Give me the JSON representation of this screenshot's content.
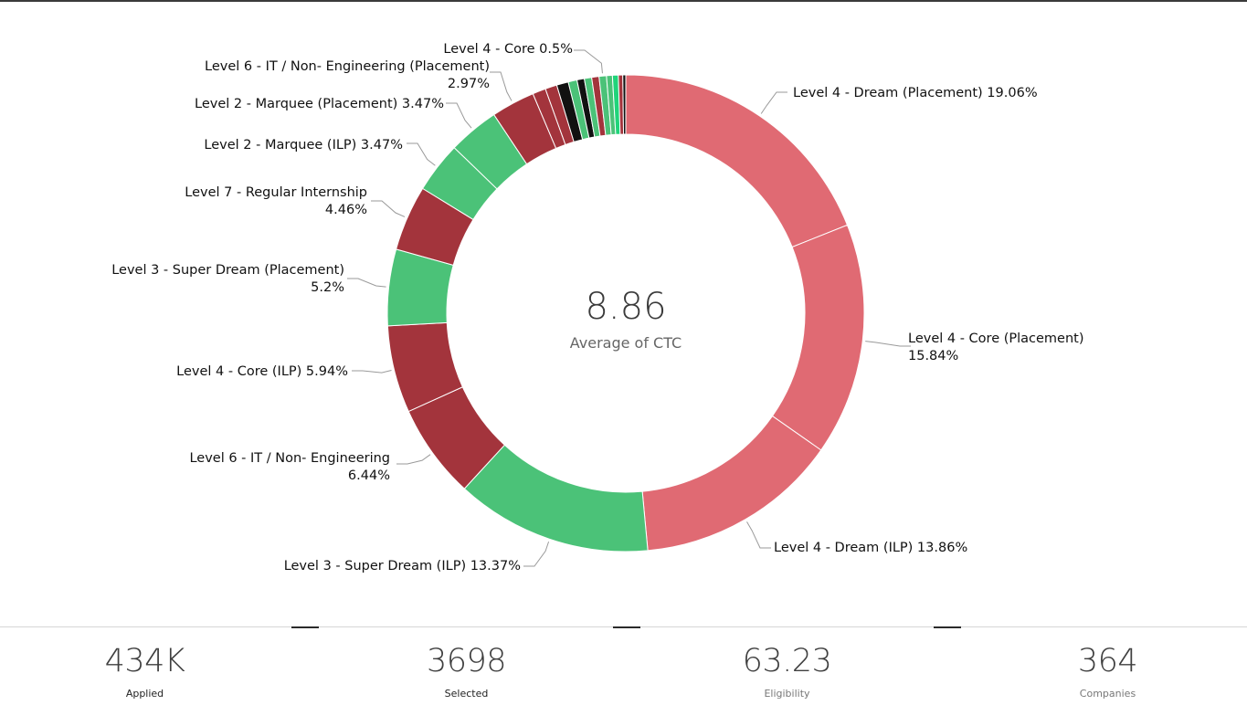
{
  "chart_data": {
    "type": "pie",
    "subtype": "donut",
    "center_value": "8.86",
    "center_label": "Average of CTC",
    "slices": [
      {
        "label": "Level 4 - Dream (Placement)",
        "line1": "Level 4 - Dream (Placement) 19.06%",
        "line2": "",
        "value": 19.06,
        "color": "#e06a73"
      },
      {
        "label": "Level 4 - Core (Placement)",
        "line1": "Level 4 - Core (Placement)",
        "line2": "15.84%",
        "value": 15.84,
        "color": "#e06a73"
      },
      {
        "label": "Level 4 - Dream (ILP)",
        "line1": "Level 4 - Dream (ILP) 13.86%",
        "line2": "",
        "value": 13.86,
        "color": "#e06a73"
      },
      {
        "label": "Level 3 - Super Dream (ILP)",
        "line1": "Level 3 - Super Dream (ILP) 13.37%",
        "line2": "",
        "value": 13.37,
        "color": "#4bc278"
      },
      {
        "label": "Level 6 - IT / Non- Engineering",
        "line1": "Level 6 - IT / Non- Engineering",
        "line2": "6.44%",
        "value": 6.44,
        "color": "#a3343c"
      },
      {
        "label": "Level 4 - Core (ILP)",
        "line1": "Level 4 - Core (ILP) 5.94%",
        "line2": "",
        "value": 5.94,
        "color": "#a3343c"
      },
      {
        "label": "Level 3 - Super Dream (Placement)",
        "line1": "Level 3 - Super Dream (Placement)",
        "line2": "5.2%",
        "value": 5.2,
        "color": "#4bc278"
      },
      {
        "label": "Level 7 - Regular Internship",
        "line1": "Level 7 - Regular Internship",
        "line2": "4.46%",
        "value": 4.46,
        "color": "#a3343c"
      },
      {
        "label": "Level 2 - Marquee (ILP)",
        "line1": "Level 2 - Marquee (ILP) 3.47%",
        "line2": "",
        "value": 3.47,
        "color": "#4bc278"
      },
      {
        "label": "Level 2 - Marquee (Placement)",
        "line1": "Level 2 - Marquee (Placement) 3.47%",
        "line2": "",
        "value": 3.47,
        "color": "#4bc278"
      },
      {
        "label": "Level 6 - IT / Non- Engineering (Placement)",
        "line1": "Level 6 - IT / Non- Engineering (Placement)",
        "line2": "2.97%",
        "value": 2.97,
        "color": "#a3343c"
      },
      {
        "label": "",
        "line1": "",
        "line2": "",
        "value": 0.9,
        "color": "#a3343c"
      },
      {
        "label": "",
        "line1": "",
        "line2": "",
        "value": 0.8,
        "color": "#a3343c"
      },
      {
        "label": "",
        "line1": "",
        "line2": "",
        "value": 0.8,
        "color": "#111111"
      },
      {
        "label": "",
        "line1": "",
        "line2": "",
        "value": 0.6,
        "color": "#4bc278"
      },
      {
        "label": "",
        "line1": "",
        "line2": "",
        "value": 0.5,
        "color": "#111111"
      },
      {
        "label": "",
        "line1": "",
        "line2": "",
        "value": 0.5,
        "color": "#4bc278"
      },
      {
        "label": "",
        "line1": "",
        "line2": "",
        "value": 0.5,
        "color": "#a3343c"
      },
      {
        "label": "Level 4 - Core",
        "line1": "Level 4 - Core 0.5%",
        "line2": "",
        "value": 0.5,
        "color": "#4bc278"
      },
      {
        "label": "",
        "line1": "",
        "line2": "",
        "value": 0.4,
        "color": "#4bc278"
      },
      {
        "label": "",
        "line1": "",
        "line2": "",
        "value": 0.4,
        "color": "#20d47a"
      },
      {
        "label": "",
        "line1": "",
        "line2": "",
        "value": 0.3,
        "color": "#a3343c"
      },
      {
        "label": "",
        "line1": "",
        "line2": "",
        "value": 0.2,
        "color": "#111111"
      }
    ]
  },
  "kpis": [
    {
      "value": "434K",
      "label": "Applied"
    },
    {
      "value": "3698",
      "label": "Selected"
    },
    {
      "value": "63.23",
      "label": "Eligibility"
    },
    {
      "value": "364",
      "label": "Companies"
    }
  ]
}
